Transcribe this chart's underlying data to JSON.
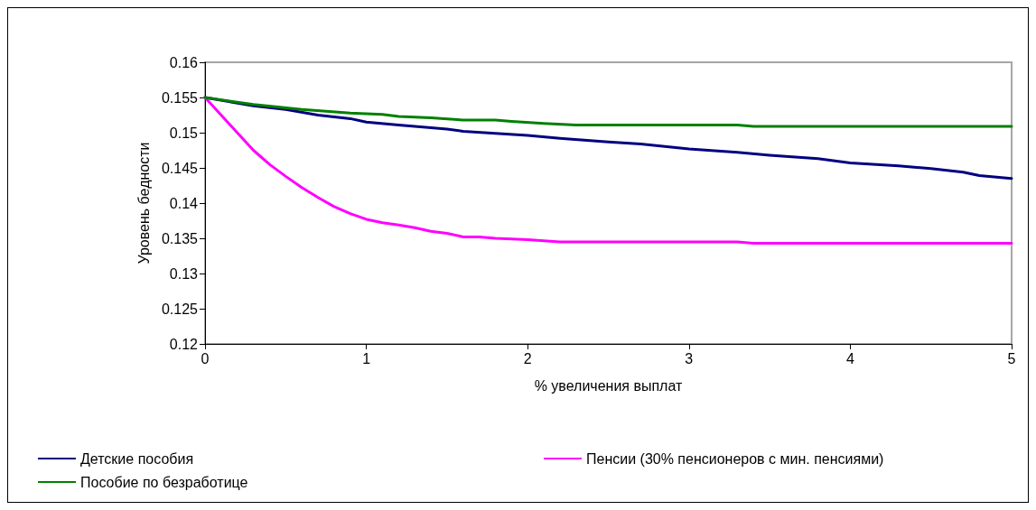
{
  "chart_data": {
    "type": "line",
    "xlabel": "% увеличения выплат",
    "ylabel": "Уровень бедности",
    "xlim": [
      0,
      5
    ],
    "xticks": [
      0,
      1,
      2,
      3,
      4,
      5
    ],
    "ylim": [
      0.12,
      0.16
    ],
    "yticks": [
      0.12,
      0.125,
      0.13,
      0.135,
      0.14,
      0.145,
      0.15,
      0.155,
      0.16
    ],
    "grid": false,
    "legend": "bottom",
    "marker": "none",
    "line_style": "solid",
    "series": [
      {
        "name": "Детские пособия",
        "color": "#000080",
        "x": [
          0,
          0.3,
          0.5,
          0.7,
          0.9,
          1.0,
          1.2,
          1.5,
          1.6,
          1.8,
          2.0,
          2.2,
          2.5,
          2.7,
          3.0,
          3.3,
          3.5,
          3.8,
          4.0,
          4.3,
          4.5,
          4.7,
          4.8,
          5.0
        ],
        "values": [
          0.155,
          0.1538,
          0.1533,
          0.1525,
          0.152,
          0.1515,
          0.1511,
          0.1505,
          0.1502,
          0.1499,
          0.1496,
          0.1492,
          0.1487,
          0.1484,
          0.1477,
          0.1472,
          0.1468,
          0.1463,
          0.1457,
          0.1453,
          0.1449,
          0.1444,
          0.1439,
          0.1435
        ]
      },
      {
        "name": "Пенсии (30% пенсионеров с мин. пенсиями)",
        "color": "#ff00ff",
        "x": [
          0,
          0.1,
          0.2,
          0.3,
          0.4,
          0.5,
          0.6,
          0.7,
          0.8,
          0.9,
          1.0,
          1.1,
          1.2,
          1.3,
          1.4,
          1.5,
          1.6,
          1.7,
          1.8,
          2.0,
          2.2,
          3.3,
          3.4,
          5.0
        ],
        "values": [
          0.155,
          0.1525,
          0.15,
          0.1475,
          0.1455,
          0.1438,
          0.1422,
          0.1408,
          0.1395,
          0.1385,
          0.1377,
          0.1372,
          0.1369,
          0.1365,
          0.136,
          0.1357,
          0.1352,
          0.1352,
          0.135,
          0.1348,
          0.1345,
          0.1345,
          0.1343,
          0.1343
        ]
      },
      {
        "name": "Пособие по безработице",
        "color": "#008000",
        "x": [
          0,
          0.3,
          0.6,
          0.9,
          1.1,
          1.2,
          1.4,
          1.6,
          1.8,
          1.9,
          2.1,
          2.3,
          3.3,
          3.4,
          5.0
        ],
        "values": [
          0.155,
          0.154,
          0.1533,
          0.1528,
          0.1526,
          0.1523,
          0.1521,
          0.1518,
          0.1518,
          0.1516,
          0.1513,
          0.1511,
          0.1511,
          0.1509,
          0.1509
        ]
      }
    ]
  }
}
